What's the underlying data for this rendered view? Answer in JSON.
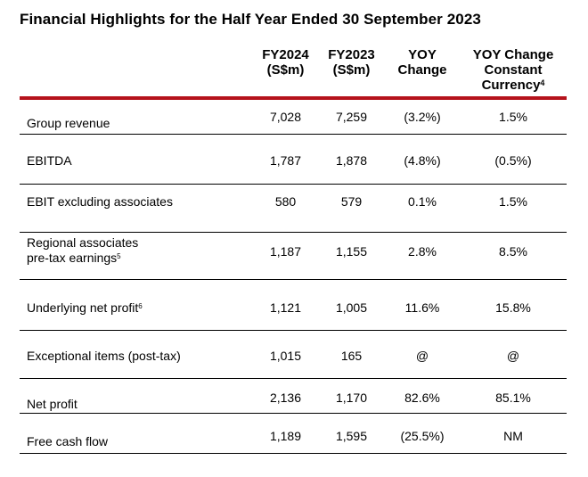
{
  "title": "Financial Highlights for the Half Year Ended 30 September 2023",
  "columns": {
    "fy2024": [
      "FY2024",
      "(S$m)"
    ],
    "fy2023": [
      "FY2023",
      "(S$m)"
    ],
    "yoy": [
      "YOY",
      "Change"
    ],
    "yoy_cc": [
      "YOY Change",
      "Constant",
      "Currency",
      "4"
    ]
  },
  "accent_color": "#b5121b",
  "rows": [
    {
      "label": "Group revenue",
      "label2": "",
      "sup": "",
      "fy2024": "7,028",
      "fy2023": "7,259",
      "yoy": "(3.2%)",
      "yoy_cc": "1.5%"
    },
    {
      "label": "EBITDA",
      "label2": "",
      "sup": "",
      "fy2024": "1,787",
      "fy2023": "1,878",
      "yoy": "(4.8%)",
      "yoy_cc": "(0.5%)"
    },
    {
      "label": "EBIT excluding associates",
      "label2": "",
      "sup": "",
      "fy2024": "580",
      "fy2023": "579",
      "yoy": "0.1%",
      "yoy_cc": "1.5%"
    },
    {
      "label": "Regional associates",
      "label2": "pre-tax earnings",
      "sup": "5",
      "fy2024": "1,187",
      "fy2023": "1,155",
      "yoy": "2.8%",
      "yoy_cc": "8.5%"
    },
    {
      "label": "Underlying net profit",
      "label2": "",
      "sup": "6",
      "fy2024": "1,121",
      "fy2023": "1,005",
      "yoy": "11.6%",
      "yoy_cc": "15.8%"
    },
    {
      "label": "Exceptional items (post-tax)",
      "label2": "",
      "sup": "",
      "fy2024": "1,015",
      "fy2023": "165",
      "yoy": "@",
      "yoy_cc": "@"
    },
    {
      "label": "Net profit",
      "label2": "",
      "sup": "",
      "fy2024": "2,136",
      "fy2023": "1,170",
      "yoy": "82.6%",
      "yoy_cc": "85.1%"
    },
    {
      "label": "Free cash flow",
      "label2": "",
      "sup": "",
      "fy2024": "1,189",
      "fy2023": "1,595",
      "yoy": "(25.5%)",
      "yoy_cc": "NM"
    }
  ]
}
